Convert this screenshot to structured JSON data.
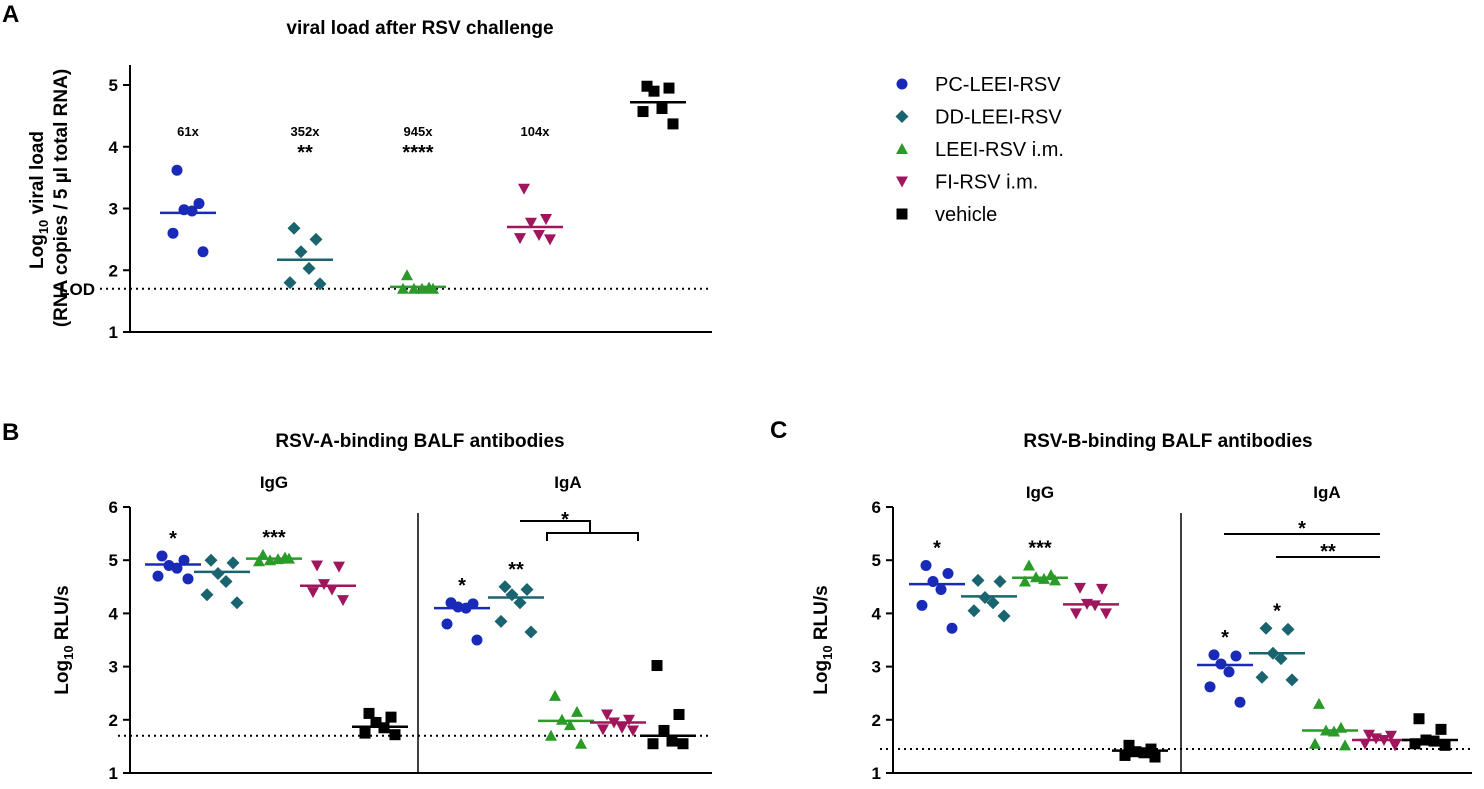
{
  "colors": {
    "PC-LEEI-RSV": "#1a2ab8",
    "DD-LEEI-RSV": "#1a6470",
    "LEEI-RSV i.m.": "#2a9a28",
    "FI-RSV i.m.": "#a0165c",
    "vehicle": "#000000"
  },
  "legend": {
    "items": [
      {
        "label": "PC-LEEI-RSV",
        "marker": "circle"
      },
      {
        "label": "DD-LEEI-RSV",
        "marker": "diamond"
      },
      {
        "label": "LEEI-RSV i.m.",
        "marker": "triangle-up"
      },
      {
        "label": "FI-RSV i.m.",
        "marker": "triangle-down"
      },
      {
        "label": "vehicle",
        "marker": "square"
      }
    ]
  },
  "panels": {
    "A": {
      "letter": "A",
      "title": "viral load after RSV challenge",
      "ylabel_line1": "Log",
      "ylabel_sub": "10",
      "ylabel_rest": " viral load",
      "ylabel_line2": "(RNA copies / 5 µl total RNA)",
      "lod_label": "LOD"
    },
    "B": {
      "letter": "B",
      "title": "RSV-A-binding BALF antibodies",
      "sub_igg": "IgG",
      "sub_iga": "IgA",
      "ylabel_main": "Log",
      "ylabel_sub": "10",
      "ylabel_rest": " RLU/s"
    },
    "C": {
      "letter": "C",
      "title": "RSV-B-binding BALF antibodies",
      "sub_igg": "IgG",
      "sub_iga": "IgA",
      "ylabel_main": "Log",
      "ylabel_sub": "10",
      "ylabel_rest": " RLU/s"
    }
  },
  "chart_data": [
    {
      "id": "A",
      "type": "scatter",
      "title": "viral load after RSV challenge",
      "ylabel": "Log10 viral load (RNA copies / 5 µl total RNA)",
      "ylim": [
        1,
        5.3
      ],
      "yticks": [
        "1",
        "2",
        "3",
        "4",
        "5"
      ],
      "lod": 1.7,
      "groups": [
        {
          "name": "PC-LEEI-RSV",
          "marker": "circle",
          "values": [
            3.62,
            3.08,
            2.98,
            2.96,
            2.6,
            2.3
          ],
          "median": 2.93,
          "fold": "61x",
          "sig": ""
        },
        {
          "name": "DD-LEEI-RSV",
          "marker": "diamond",
          "values": [
            2.68,
            2.5,
            2.3,
            2.03,
            1.8,
            1.78
          ],
          "median": 2.17,
          "fold": "352x",
          "sig": "**"
        },
        {
          "name": "LEEI-RSV i.m.",
          "marker": "triangle-up",
          "values": [
            1.92,
            1.72,
            1.7,
            1.7,
            1.7,
            1.7
          ],
          "median": 1.73,
          "fold": "945x",
          "sig": "****"
        },
        {
          "name": "FI-RSV i.m.",
          "marker": "triangle-down",
          "values": [
            3.32,
            2.83,
            2.77,
            2.57,
            2.52,
            2.5
          ],
          "median": 2.7,
          "fold": "104x",
          "sig": ""
        },
        {
          "name": "vehicle",
          "marker": "square",
          "values": [
            4.98,
            4.95,
            4.9,
            4.62,
            4.57,
            4.37
          ],
          "median": 4.72,
          "fold": "",
          "sig": ""
        }
      ]
    },
    {
      "id": "B",
      "type": "scatter",
      "title": "RSV-A-binding BALF antibodies",
      "ylabel": "Log10 RLU/s",
      "ylim": [
        1,
        6
      ],
      "yticks": [
        "1",
        "2",
        "3",
        "4",
        "5",
        "6"
      ],
      "lod": 1.7,
      "subpanels": [
        {
          "label": "IgG",
          "groups": [
            {
              "name": "PC-LEEI-RSV",
              "marker": "circle",
              "values": [
                5.08,
                5.0,
                4.9,
                4.85,
                4.7,
                4.65
              ],
              "median": 4.92,
              "sig": "*"
            },
            {
              "name": "DD-LEEI-RSV",
              "marker": "diamond",
              "values": [
                5.0,
                4.95,
                4.75,
                4.6,
                4.35,
                4.2
              ],
              "median": 4.78,
              "sig": ""
            },
            {
              "name": "LEEI-RSV i.m.",
              "marker": "triangle-up",
              "values": [
                5.1,
                5.05,
                5.0,
                5.02,
                4.98,
                5.03
              ],
              "median": 5.03,
              "sig": "***"
            },
            {
              "name": "FI-RSV i.m.",
              "marker": "triangle-down",
              "values": [
                4.9,
                4.88,
                4.55,
                4.45,
                4.4,
                4.25
              ],
              "median": 4.52,
              "sig": ""
            },
            {
              "name": "vehicle",
              "marker": "square",
              "values": [
                2.12,
                2.05,
                1.95,
                1.85,
                1.75,
                1.72
              ],
              "median": 1.87,
              "sig": ""
            }
          ]
        },
        {
          "label": "IgA",
          "groups": [
            {
              "name": "PC-LEEI-RSV",
              "marker": "circle",
              "values": [
                4.2,
                4.18,
                4.12,
                4.1,
                3.8,
                3.5
              ],
              "median": 4.1,
              "sig": "*"
            },
            {
              "name": "DD-LEEI-RSV",
              "marker": "diamond",
              "values": [
                4.5,
                4.45,
                4.35,
                4.2,
                3.85,
                3.65
              ],
              "median": 4.3,
              "sig": "**"
            },
            {
              "name": "LEEI-RSV i.m.",
              "marker": "triangle-up",
              "values": [
                2.45,
                2.15,
                2.0,
                1.9,
                1.7,
                1.55
              ],
              "median": 1.98,
              "sig": ""
            },
            {
              "name": "FI-RSV i.m.",
              "marker": "triangle-down",
              "values": [
                2.1,
                2.0,
                1.95,
                1.85,
                1.82,
                1.8
              ],
              "median": 1.95,
              "sig": ""
            },
            {
              "name": "vehicle",
              "marker": "square",
              "values": [
                3.02,
                2.1,
                1.8,
                1.6,
                1.55,
                1.55
              ],
              "median": 1.7,
              "sig": ""
            }
          ]
        }
      ],
      "comparisons": [
        {
          "label": "*",
          "between": [
            "IgA PC-LEEI-RSV/DD-LEEI-RSV",
            "IgA LEEI-RSV i.m./FI-RSV i.m./vehicle"
          ]
        }
      ]
    },
    {
      "id": "C",
      "type": "scatter",
      "title": "RSV-B-binding BALF antibodies",
      "ylabel": "Log10 RLU/s",
      "ylim": [
        1,
        6
      ],
      "yticks": [
        "1",
        "2",
        "3",
        "4",
        "5",
        "6"
      ],
      "lod": 1.45,
      "subpanels": [
        {
          "label": "IgG",
          "groups": [
            {
              "name": "PC-LEEI-RSV",
              "marker": "circle",
              "values": [
                4.9,
                4.75,
                4.6,
                4.45,
                4.15,
                3.72
              ],
              "median": 4.55,
              "sig": "*"
            },
            {
              "name": "DD-LEEI-RSV",
              "marker": "diamond",
              "values": [
                4.62,
                4.6,
                4.3,
                4.2,
                4.05,
                3.95
              ],
              "median": 4.32,
              "sig": ""
            },
            {
              "name": "LEEI-RSV i.m.",
              "marker": "triangle-up",
              "values": [
                4.9,
                4.72,
                4.68,
                4.65,
                4.6,
                4.62
              ],
              "median": 4.67,
              "sig": "***"
            },
            {
              "name": "FI-RSV i.m.",
              "marker": "triangle-down",
              "values": [
                4.48,
                4.46,
                4.18,
                4.15,
                4.0,
                4.0
              ],
              "median": 4.17,
              "sig": ""
            },
            {
              "name": "vehicle",
              "marker": "square",
              "values": [
                1.52,
                1.45,
                1.4,
                1.38,
                1.33,
                1.3
              ],
              "median": 1.42,
              "sig": ""
            }
          ]
        },
        {
          "label": "IgA",
          "groups": [
            {
              "name": "PC-LEEI-RSV",
              "marker": "circle",
              "values": [
                3.22,
                3.2,
                3.05,
                2.9,
                2.62,
                2.33
              ],
              "median": 3.03,
              "sig": "*"
            },
            {
              "name": "DD-LEEI-RSV",
              "marker": "diamond",
              "values": [
                3.72,
                3.7,
                3.25,
                3.15,
                2.8,
                2.75
              ],
              "median": 3.25,
              "sig": "*"
            },
            {
              "name": "LEEI-RSV i.m.",
              "marker": "triangle-up",
              "values": [
                2.3,
                1.85,
                1.8,
                1.78,
                1.55,
                1.52
              ],
              "median": 1.8,
              "sig": ""
            },
            {
              "name": "FI-RSV i.m.",
              "marker": "triangle-down",
              "values": [
                1.72,
                1.7,
                1.65,
                1.62,
                1.55,
                1.52
              ],
              "median": 1.62,
              "sig": ""
            },
            {
              "name": "vehicle",
              "marker": "square",
              "values": [
                2.02,
                1.82,
                1.62,
                1.6,
                1.55,
                1.52
              ],
              "median": 1.62,
              "sig": ""
            }
          ]
        }
      ],
      "comparisons": [
        {
          "label": "*",
          "between": [
            "IgA PC-LEEI-RSV",
            "IgA FI-RSV i.m."
          ]
        },
        {
          "label": "**",
          "between": [
            "IgA DD-LEEI-RSV",
            "IgA FI-RSV i.m."
          ]
        }
      ]
    }
  ]
}
